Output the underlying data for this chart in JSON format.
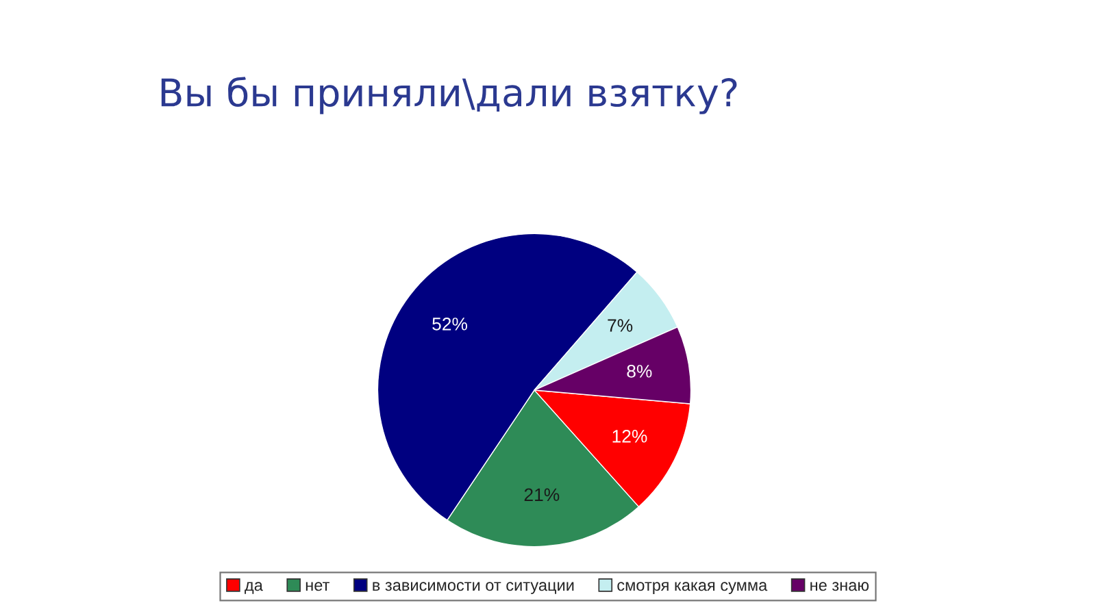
{
  "chart_data": {
    "type": "pie",
    "title": "Вы бы приняли\\дали взятку?",
    "categories": [
      "да",
      "нет",
      "в зависимости от ситуации",
      "смотря какая сумма",
      "не знаю"
    ],
    "values": [
      12,
      21,
      52,
      7,
      8
    ],
    "colors": [
      "#ff0000",
      "#2e8b57",
      "#000080",
      "#c4eef0",
      "#660066"
    ],
    "value_labels": [
      "12%",
      "21%",
      "52%",
      "7%",
      "8%"
    ],
    "legend": "bottom"
  }
}
